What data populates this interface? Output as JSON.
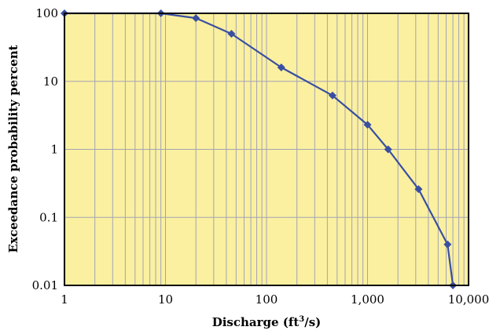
{
  "chart_data": {
    "type": "line",
    "title": "",
    "xlabel": "Discharge (ft",
    "xlabel_sup": "3",
    "xlabel_end": "/s)",
    "ylabel": "Exceedance probability percent",
    "xscale": "log",
    "yscale": "log",
    "xlim": [
      1,
      10000
    ],
    "ylim": [
      0.01,
      100
    ],
    "x_ticks": [
      1,
      10,
      100,
      1000,
      10000
    ],
    "x_tick_labels": [
      "1",
      "10",
      "100",
      "1,000",
      "10,000"
    ],
    "y_ticks": [
      0.01,
      0.1,
      1,
      10,
      100
    ],
    "y_tick_labels": [
      "0.01",
      "0.1",
      "1",
      "10",
      "100"
    ],
    "grid": true,
    "legend": "none",
    "series": [
      {
        "x": [
          1,
          9,
          20,
          45,
          140,
          450,
          1000,
          1600,
          3200,
          6200,
          7000
        ],
        "y": [
          100,
          100,
          85,
          50,
          16,
          6.2,
          2.3,
          1.0,
          0.26,
          0.04,
          0.01
        ]
      }
    ],
    "colors": {
      "plot_background": "#faf0a0",
      "grid": "#a3a3b4",
      "line": "#3a4fa0",
      "marker": "#3a4fa0",
      "frame": "#000000"
    }
  }
}
